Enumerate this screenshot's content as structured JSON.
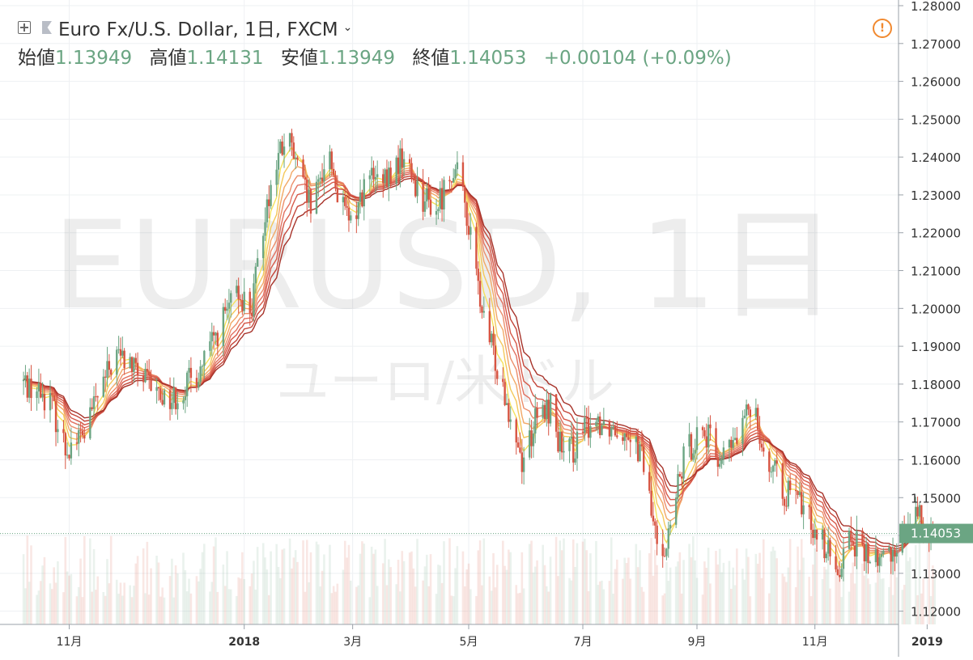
{
  "header": {
    "symbol_title": "Euro Fx/U.S. Dollar, 1日, FXCM",
    "open_label": "始値",
    "open_value": "1.13949",
    "high_label": "高値",
    "high_value": "1.14131",
    "low_label": "安値",
    "low_value": "1.13949",
    "close_label": "終値",
    "close_value": "1.14053",
    "change": "+0.00104 (+0.09%)"
  },
  "watermark": {
    "symbol": "EURUSD, 1日",
    "description": "ユーロ/米ドル"
  },
  "price_tag": "1.14053",
  "colors": {
    "up": "#6ba583",
    "down": "#d75442",
    "ribbon": [
      "#f5e25c",
      "#f4c85a",
      "#f2a866",
      "#ec8e6b",
      "#e27060",
      "#d65a4a",
      "#c4463a",
      "#a7332a"
    ]
  },
  "chart_data": {
    "type": "candlestick",
    "title": "Euro Fx/U.S. Dollar, 1日, FXCM",
    "y_ticks": [
      "1.28000",
      "1.27000",
      "1.26000",
      "1.25000",
      "1.24000",
      "1.23000",
      "1.22000",
      "1.21000",
      "1.20000",
      "1.19000",
      "1.18000",
      "1.17000",
      "1.16000",
      "1.15000",
      "1.14000",
      "1.13000",
      "1.12000"
    ],
    "ylim": [
      1.1165,
      1.2815
    ],
    "x_ticks": [
      "11月",
      "2018",
      "3月",
      "5月",
      "7月",
      "9月",
      "11月",
      "2019"
    ],
    "x_tick_days": [
      10,
      102,
      159,
      220,
      280,
      340,
      402,
      461
    ],
    "last_price": 1.14053,
    "gridlines": true,
    "price_anchors": [
      {
        "d": -15,
        "p": 1.1808
      },
      {
        "d": -10,
        "p": 1.1795
      },
      {
        "d": 0,
        "p": 1.176
      },
      {
        "d": 8,
        "p": 1.163
      },
      {
        "d": 18,
        "p": 1.167
      },
      {
        "d": 25,
        "p": 1.177
      },
      {
        "d": 35,
        "p": 1.188
      },
      {
        "d": 42,
        "p": 1.185
      },
      {
        "d": 55,
        "p": 1.178
      },
      {
        "d": 64,
        "p": 1.176
      },
      {
        "d": 78,
        "p": 1.183
      },
      {
        "d": 92,
        "p": 1.198
      },
      {
        "d": 99,
        "p": 1.204
      },
      {
        "d": 106,
        "p": 1.2
      },
      {
        "d": 113,
        "p": 1.226
      },
      {
        "d": 120,
        "p": 1.24
      },
      {
        "d": 125,
        "p": 1.245
      },
      {
        "d": 132,
        "p": 1.233
      },
      {
        "d": 138,
        "p": 1.225
      },
      {
        "d": 146,
        "p": 1.243
      },
      {
        "d": 152,
        "p": 1.228
      },
      {
        "d": 158,
        "p": 1.222
      },
      {
        "d": 167,
        "p": 1.235
      },
      {
        "d": 175,
        "p": 1.232
      },
      {
        "d": 185,
        "p": 1.24
      },
      {
        "d": 195,
        "p": 1.23
      },
      {
        "d": 203,
        "p": 1.226
      },
      {
        "d": 212,
        "p": 1.238
      },
      {
        "d": 218,
        "p": 1.228
      },
      {
        "d": 228,
        "p": 1.196
      },
      {
        "d": 238,
        "p": 1.18
      },
      {
        "d": 248,
        "p": 1.16
      },
      {
        "d": 255,
        "p": 1.17
      },
      {
        "d": 263,
        "p": 1.174
      },
      {
        "d": 270,
        "p": 1.16
      },
      {
        "d": 278,
        "p": 1.165
      },
      {
        "d": 285,
        "p": 1.171
      },
      {
        "d": 295,
        "p": 1.169
      },
      {
        "d": 305,
        "p": 1.168
      },
      {
        "d": 312,
        "p": 1.159
      },
      {
        "d": 318,
        "p": 1.14
      },
      {
        "d": 324,
        "p": 1.137
      },
      {
        "d": 333,
        "p": 1.16
      },
      {
        "d": 342,
        "p": 1.169
      },
      {
        "d": 352,
        "p": 1.16
      },
      {
        "d": 362,
        "p": 1.166
      },
      {
        "d": 370,
        "p": 1.177
      },
      {
        "d": 375,
        "p": 1.162
      },
      {
        "d": 385,
        "p": 1.152
      },
      {
        "d": 395,
        "p": 1.148
      },
      {
        "d": 405,
        "p": 1.14
      },
      {
        "d": 413,
        "p": 1.13
      },
      {
        "d": 420,
        "p": 1.14
      },
      {
        "d": 428,
        "p": 1.135
      },
      {
        "d": 436,
        "p": 1.133
      },
      {
        "d": 444,
        "p": 1.137
      },
      {
        "d": 452,
        "p": 1.145
      },
      {
        "d": 458,
        "p": 1.144
      },
      {
        "d": 465,
        "p": 1.1405
      }
    ]
  }
}
